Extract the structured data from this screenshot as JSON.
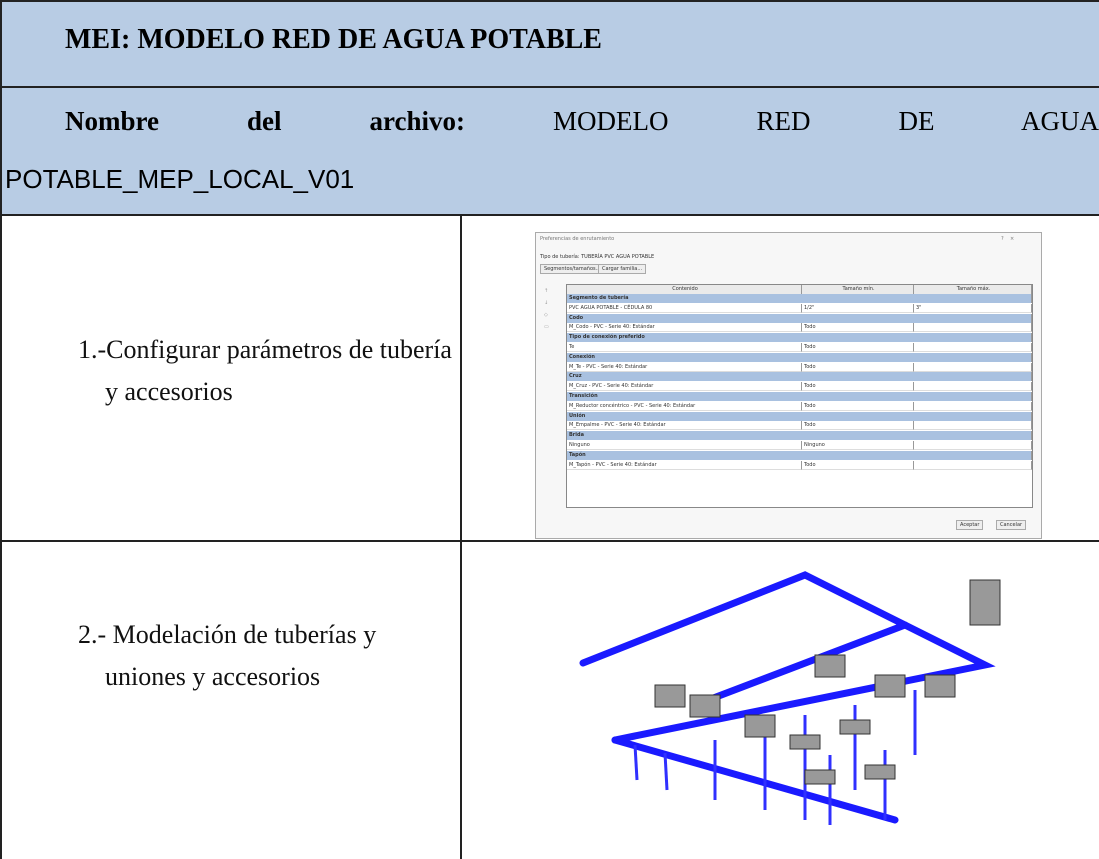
{
  "header": {
    "title": "MEI: MODELO RED DE AGUA POTABLE"
  },
  "file": {
    "label": "Nombre del archivo:",
    "name_text": "MODELO RED DE AGUA",
    "name_code": "POTABLE_MEP_LOCAL_V01"
  },
  "steps": [
    {
      "text": "1.-Configurar parámetros de tubería y accesorios",
      "dialog": {
        "title": "Preferencias de enrutamiento",
        "pipe_type": "Tipo de tubería: TUBERÍA PVC AGUA POTABLE",
        "buttons": [
          "Segmentos/tamaños...",
          "Cargar familia..."
        ],
        "columns": [
          "Contenido",
          "Tamaño mín.",
          "Tamaño máx."
        ],
        "sections": [
          {
            "name": "Segmento de tubería",
            "row": [
              "PVC AGUA POTABLE - CÉDULA 80",
              "1/2\"",
              "3\""
            ]
          },
          {
            "name": "Codo",
            "row": [
              "M_Codo - PVC - Serie 40: Estándar",
              "Todo"
            ]
          },
          {
            "name": "Tipo de conexión preferido",
            "row": [
              "Te",
              "Todo"
            ]
          },
          {
            "name": "Conexión",
            "row": [
              "M_Te - PVC - Serie 40: Estándar",
              "Todo"
            ]
          },
          {
            "name": "Cruz",
            "row": [
              "M_Cruz - PVC - Serie 40: Estándar",
              "Todo"
            ]
          },
          {
            "name": "Transición",
            "row": [
              "M_Reductor concéntrico - PVC - Serie 40: Estándar",
              "Todo"
            ]
          },
          {
            "name": "Unión",
            "row": [
              "M_Empalme - PVC - Serie 40: Estándar",
              "Todo"
            ]
          },
          {
            "name": "Brida",
            "row": [
              "Ninguno",
              "Ninguno"
            ]
          },
          {
            "name": "Tapón",
            "row": [
              "M_Tapón - PVC - Serie 40: Estándar",
              "Todo"
            ]
          }
        ],
        "actions": [
          "Aceptar",
          "Cancelar"
        ]
      }
    },
    {
      "text": "2.- Modelación de tuberías y uniones y accesorios"
    }
  ]
}
